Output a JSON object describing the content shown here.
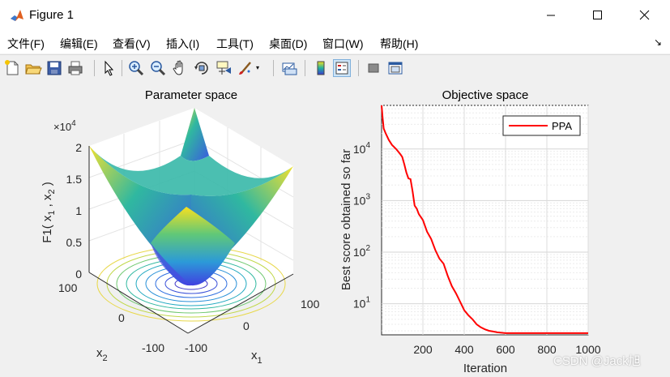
{
  "window": {
    "title": "Figure 1"
  },
  "menu": [
    "文件(F)",
    "编辑(E)",
    "查看(V)",
    "插入(I)",
    "工具(T)",
    "桌面(D)",
    "窗口(W)",
    "帮助(H)"
  ],
  "toolbar_icons": [
    "new-figure-icon",
    "open-file-icon",
    "save-icon",
    "print-icon",
    "pointer-icon",
    "zoom-in-icon",
    "zoom-out-icon",
    "pan-icon",
    "rotate-3d-icon",
    "data-cursor-icon",
    "brush-icon",
    "link-plot-icon",
    "colorbar-icon",
    "legend-icon",
    "hide-plot-tools-icon",
    "show-plot-tools-icon"
  ],
  "left_plot": {
    "title": "Parameter space",
    "zlabel": "F1( x_1 , x_2 )",
    "zlabel_main": "F1( x",
    "zlabel_sub1": "1",
    "zlabel_mid": " , x",
    "zlabel_sub2": "2",
    "zlabel_end": " )",
    "exponent_label": "×10",
    "exponent_power": "4",
    "z_ticks": [
      "0",
      "0.5",
      "1",
      "1.5",
      "2"
    ],
    "x1_ticks": [
      "100",
      "0",
      "-100"
    ],
    "x2_ticks": [
      "100",
      "0",
      "-100"
    ],
    "x1_label": "x",
    "x1_sub": "1",
    "x2_label": "x",
    "x2_sub": "2"
  },
  "right_plot": {
    "title": "Objective space",
    "ylabel": "Best score obtained so far",
    "xlabel": "Iteration",
    "legend": "PPA",
    "x_ticks": [
      "200",
      "400",
      "600",
      "800",
      "1000"
    ],
    "y_tick_base": "10",
    "y_tick_powers": [
      "1",
      "2",
      "3",
      "4"
    ]
  },
  "chart_data": {
    "type": "line",
    "title": "Objective space",
    "xlabel": "Iteration",
    "ylabel": "Best score obtained so far",
    "yscale": "log",
    "xlim": [
      0,
      1000
    ],
    "ylim": [
      2.5,
      70000
    ],
    "grid": true,
    "legend_position": "top-right",
    "series": [
      {
        "name": "PPA",
        "color": "#ff0000",
        "x": [
          0,
          5,
          10,
          20,
          35,
          50,
          70,
          90,
          100,
          110,
          120,
          130,
          140,
          150,
          160,
          170,
          180,
          200,
          220,
          240,
          260,
          280,
          300,
          320,
          340,
          360,
          380,
          400,
          420,
          440,
          460,
          480,
          500,
          520,
          540,
          560,
          580,
          600,
          620,
          640,
          660,
          680,
          700,
          720,
          750,
          800,
          850,
          900,
          950,
          1000
        ],
        "y": [
          70000,
          40000,
          25000,
          20000,
          15000,
          12000,
          10000,
          8000,
          7000,
          5000,
          3500,
          2700,
          2600,
          1500,
          800,
          700,
          550,
          420,
          250,
          180,
          110,
          75,
          60,
          35,
          22,
          16,
          11,
          7.5,
          6,
          5,
          4,
          3.5,
          3.2,
          3.0,
          2.9,
          2.8,
          2.75,
          2.7,
          2.7,
          2.7,
          2.7,
          2.7,
          2.7,
          2.7,
          2.7,
          2.7,
          2.7,
          2.7,
          2.7,
          2.7
        ]
      }
    ]
  },
  "watermark": "CSDN @Jack旭"
}
